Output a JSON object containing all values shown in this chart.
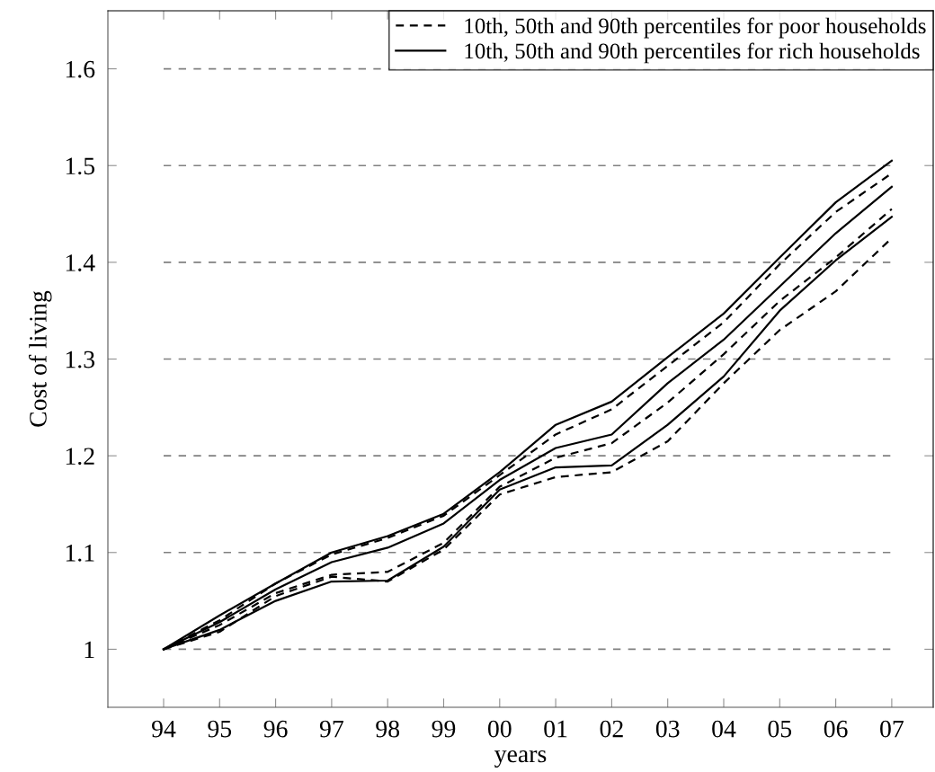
{
  "chart_data": {
    "type": "line",
    "xlabel": "years",
    "ylabel": "Cost of living",
    "categories": [
      "94",
      "95",
      "96",
      "97",
      "98",
      "99",
      "00",
      "01",
      "02",
      "03",
      "04",
      "05",
      "06",
      "07"
    ],
    "ylim": [
      0.94,
      1.66
    ],
    "yticks": [
      {
        "value": 1,
        "label": "1"
      },
      1.1,
      1.2,
      1.3,
      1.4,
      1.5,
      1.6
    ],
    "grid": "y",
    "legend": "top right",
    "marker": "none",
    "series": [
      {
        "name": "10th, 50th and 90th percentiles for poor households",
        "color": "#000000",
        "line_style": "dashed",
        "values": [
          1,
          1.03,
          1.068,
          1.098,
          1.115,
          1.138,
          1.18,
          1.222,
          1.248,
          1.293,
          1.338,
          1.398,
          1.452,
          1.492
        ]
      },
      {
        "color": "#000000",
        "line_style": "dashed",
        "values": [
          1,
          1.025,
          1.058,
          1.077,
          1.08,
          1.11,
          1.168,
          1.198,
          1.213,
          1.255,
          1.305,
          1.36,
          1.405,
          1.455
        ]
      },
      {
        "color": "#000000",
        "line_style": "dashed",
        "values": [
          1,
          1.018,
          1.055,
          1.075,
          1.07,
          1.103,
          1.16,
          1.178,
          1.183,
          1.215,
          1.275,
          1.33,
          1.37,
          1.425
        ]
      },
      {
        "name": "10th, 50th and 90th percentiles for rich households",
        "color": "#000000",
        "line_style": "solid",
        "values": [
          1,
          1.035,
          1.068,
          1.1,
          1.117,
          1.14,
          1.183,
          1.232,
          1.256,
          1.302,
          1.347,
          1.405,
          1.462,
          1.505
        ]
      },
      {
        "color": "#000000",
        "line_style": "solid",
        "values": [
          1,
          1.028,
          1.062,
          1.09,
          1.105,
          1.13,
          1.175,
          1.208,
          1.222,
          1.275,
          1.32,
          1.375,
          1.43,
          1.478
        ]
      },
      {
        "color": "#000000",
        "line_style": "solid",
        "values": [
          1,
          1.02,
          1.05,
          1.07,
          1.071,
          1.106,
          1.165,
          1.188,
          1.19,
          1.232,
          1.282,
          1.35,
          1.402,
          1.447
        ]
      }
    ]
  }
}
